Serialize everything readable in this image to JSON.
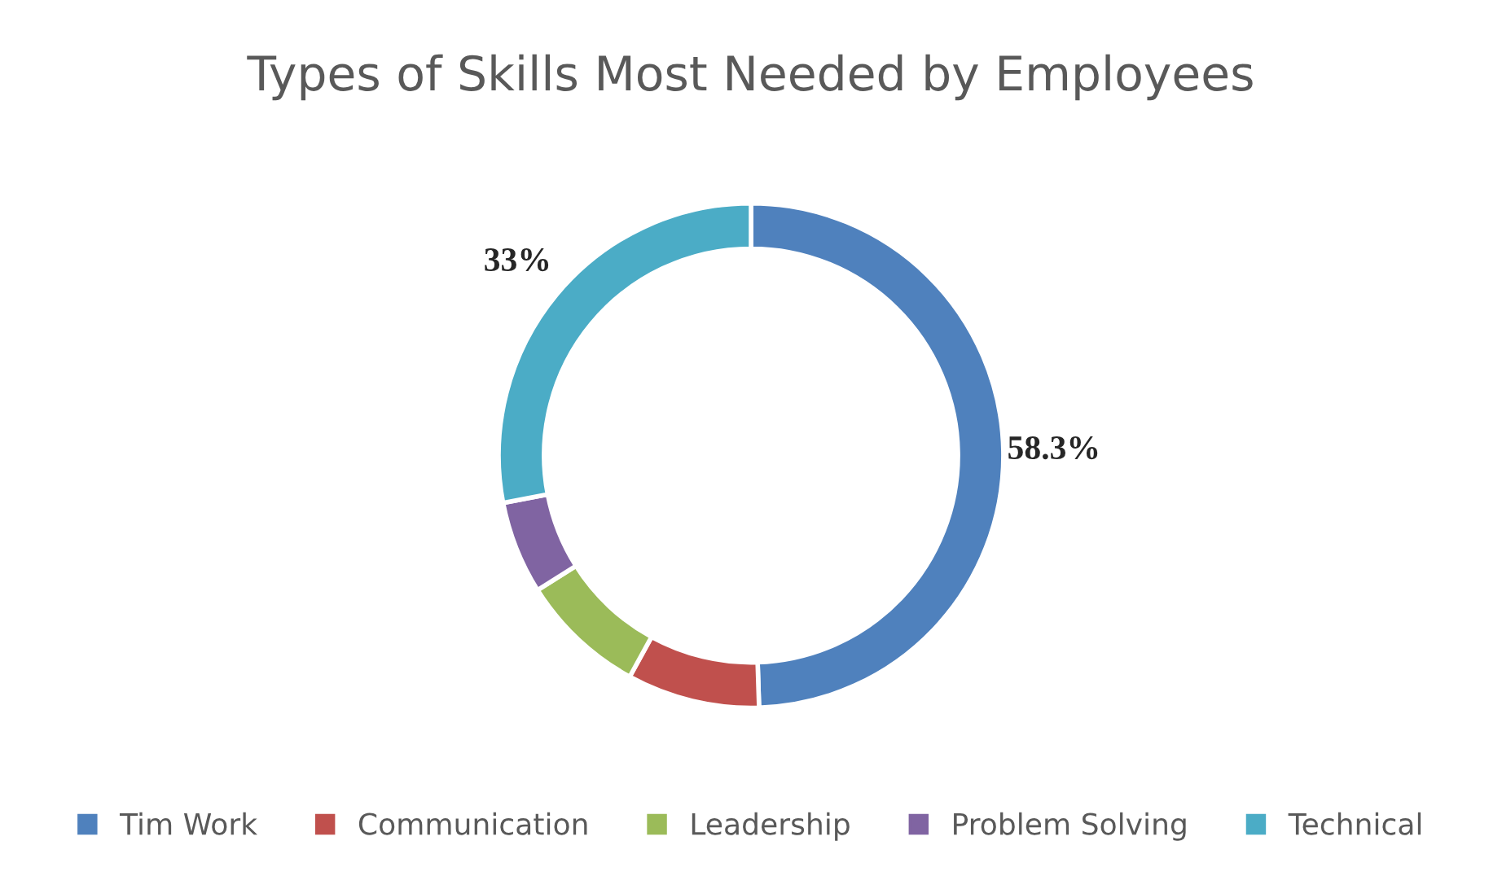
{
  "chart_data": {
    "type": "donut",
    "title": "Types of Skills Most Needed by Employees",
    "categories": [
      "Tim Work",
      "Communication",
      "Leadership",
      "Problem Solving",
      "Technical"
    ],
    "values": [
      58.3,
      10,
      9.5,
      7,
      33
    ],
    "value_labels": [
      "58.3%",
      null,
      null,
      null,
      "33%"
    ],
    "colors": [
      "#4f81bd",
      "#c0504d",
      "#9bbb59",
      "#8064a2",
      "#4bacc6"
    ],
    "legend": "bottom"
  }
}
